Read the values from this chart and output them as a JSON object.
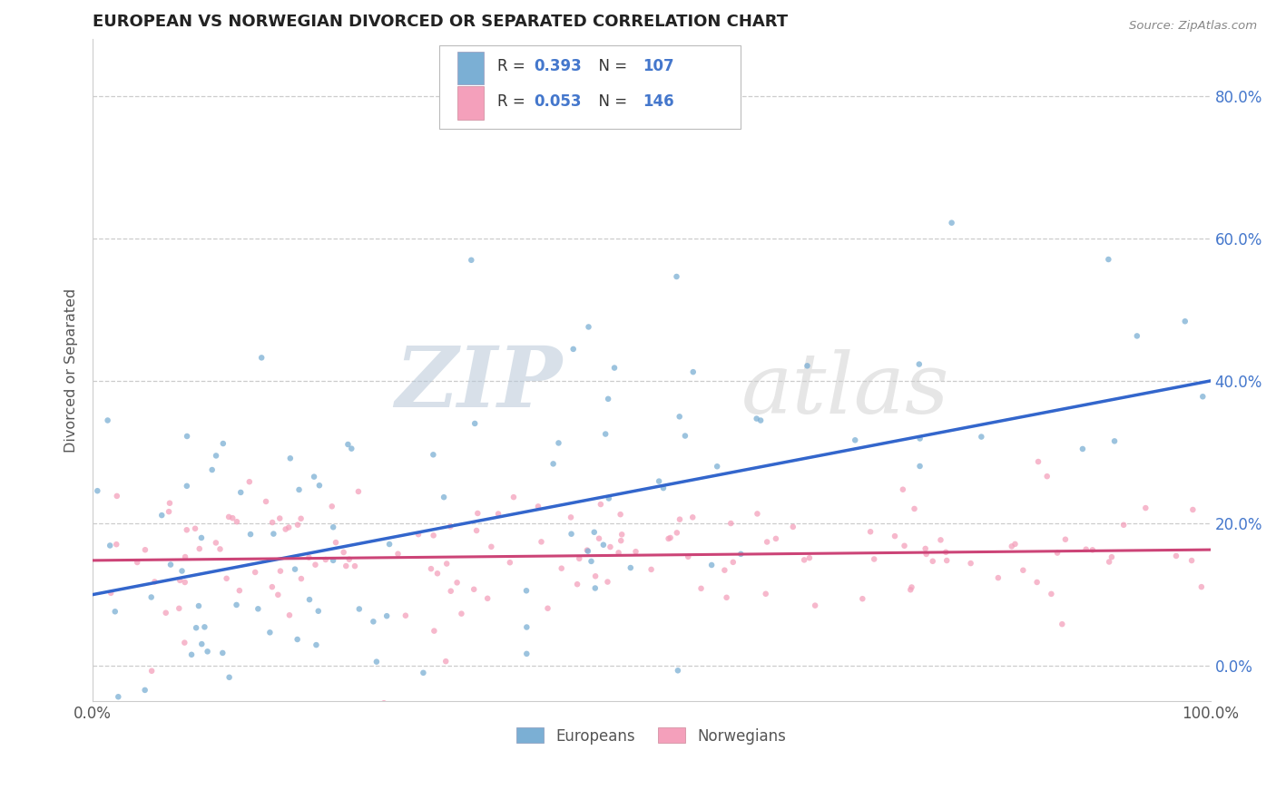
{
  "title": "EUROPEAN VS NORWEGIAN DIVORCED OR SEPARATED CORRELATION CHART",
  "source_text": "Source: ZipAtlas.com",
  "ylabel": "Divorced or Separated",
  "watermark_zip": "ZIP",
  "watermark_atlas": "atlas",
  "xlim": [
    0.0,
    1.0
  ],
  "ylim": [
    -0.05,
    0.88
  ],
  "yticks": [
    0.0,
    0.2,
    0.4,
    0.6,
    0.8
  ],
  "ytick_labels_right": [
    "0.0%",
    "20.0%",
    "40.0%",
    "60.0%",
    "80.0%"
  ],
  "xtick_left_label": "0.0%",
  "xtick_right_label": "100.0%",
  "title_color": "#222222",
  "title_fontsize": 13,
  "axis_label_color": "#555555",
  "grid_color": "#cccccc",
  "blue_scatter_color": "#7bafd4",
  "pink_scatter_color": "#f4a0bb",
  "blue_line_color": "#3366cc",
  "pink_line_color": "#cc4477",
  "blue_r": "0.393",
  "blue_n": "107",
  "pink_r": "0.053",
  "pink_n": "146",
  "legend_stat_color": "#4477cc",
  "blue_line_y0": 0.1,
  "blue_line_y1": 0.4,
  "pink_line_y0": 0.148,
  "pink_line_y1": 0.163,
  "background_color": "#ffffff",
  "right_tick_color": "#4477cc",
  "bottom_legend_europeans": "Europeans",
  "bottom_legend_norwegians": "Norwegians",
  "scatter_size": 22,
  "scatter_alpha": 0.75
}
